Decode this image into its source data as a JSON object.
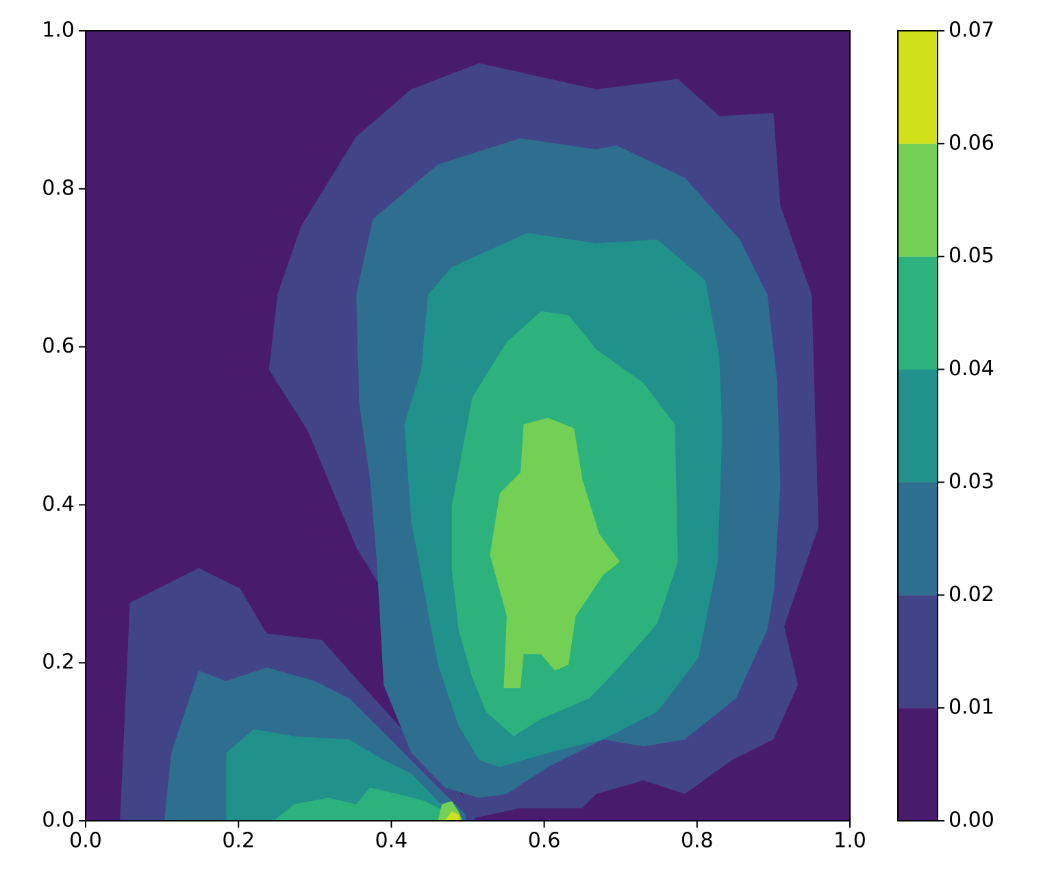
{
  "chart_data": {
    "type": "contourf",
    "xlim": [
      0,
      1
    ],
    "ylim": [
      0,
      1
    ],
    "xticks": [
      {
        "value": 0,
        "label": "0.0"
      },
      0.2,
      0.4,
      0.6,
      0.8,
      {
        "value": 1,
        "label": "1.0"
      }
    ],
    "yticks": [
      {
        "value": 0,
        "label": "0.0"
      },
      0.2,
      0.4,
      0.6,
      0.8,
      {
        "value": 1,
        "label": "1.0"
      }
    ],
    "clim": [
      0,
      0.07
    ],
    "cticks": [
      {
        "value": 0,
        "label": "0.00"
      },
      0.01,
      0.02,
      0.03,
      0.04,
      0.05,
      0.06,
      0.07
    ],
    "colors": [
      "#481b6d",
      "#414487",
      "#2e6e8e",
      "#21918c",
      "#2db27d",
      "#73d055",
      "#d0e11c"
    ],
    "regions": [
      {
        "color": "#414487",
        "x": [
          0.24,
          0.251,
          0.282,
          0.354,
          0.426,
          0.515,
          0.668,
          0.775,
          0.829,
          0.9,
          0.909,
          0.95,
          0.959,
          0.914,
          0.932,
          0.9,
          0.846,
          0.784,
          0.73,
          0.668,
          0.65,
          0.569,
          0.506,
          0.453,
          0.404,
          0.354,
          0.291
        ],
        "y": [
          0.571,
          0.666,
          0.753,
          0.866,
          0.926,
          0.959,
          0.926,
          0.939,
          0.892,
          0.896,
          0.779,
          0.666,
          0.372,
          0.246,
          0.172,
          0.103,
          0.077,
          0.034,
          0.051,
          0.034,
          0.016,
          0.016,
          0.003,
          0.129,
          0.268,
          0.346,
          0.493
        ]
      },
      {
        "color": "#414487",
        "x": [
          0.045,
          0.058,
          0.148,
          0.202,
          0.237,
          0.309,
          0.345,
          0.426,
          0.48,
          0.506,
          0.51
        ],
        "y": [
          0,
          0.276,
          0.32,
          0.294,
          0.237,
          0.229,
          0.19,
          0.103,
          0.051,
          0.012,
          0
        ]
      },
      {
        "color": "#2e6e8e",
        "x": [
          0.354,
          0.376,
          0.461,
          0.569,
          0.668,
          0.694,
          0.784,
          0.856,
          0.892,
          0.905,
          0.909,
          0.901,
          0.892,
          0.851,
          0.784,
          0.73,
          0.677,
          0.605,
          0.551,
          0.515,
          0.47,
          0.426,
          0.39,
          0.381,
          0.372,
          0.358
        ],
        "y": [
          0.666,
          0.762,
          0.831,
          0.864,
          0.85,
          0.855,
          0.814,
          0.736,
          0.666,
          0.554,
          0.424,
          0.294,
          0.242,
          0.155,
          0.103,
          0.094,
          0.103,
          0.068,
          0.034,
          0.029,
          0.042,
          0.086,
          0.172,
          0.328,
          0.432,
          0.528
        ]
      },
      {
        "color": "#2e6e8e",
        "x": [
          0.103,
          0.112,
          0.148,
          0.184,
          0.237,
          0.3,
          0.345,
          0.39,
          0.435,
          0.47,
          0.497,
          0.497
        ],
        "y": [
          0,
          0.086,
          0.19,
          0.177,
          0.194,
          0.177,
          0.155,
          0.112,
          0.068,
          0.034,
          0.008,
          0
        ]
      },
      {
        "color": "#21918c",
        "x": [
          0.448,
          0.479,
          0.578,
          0.668,
          0.748,
          0.811,
          0.829,
          0.833,
          0.827,
          0.802,
          0.748,
          0.677,
          0.605,
          0.542,
          0.515,
          0.488,
          0.461,
          0.444,
          0.426,
          0.417,
          0.439
        ],
        "y": [
          0.666,
          0.701,
          0.744,
          0.731,
          0.736,
          0.684,
          0.588,
          0.493,
          0.328,
          0.207,
          0.138,
          0.103,
          0.086,
          0.068,
          0.077,
          0.12,
          0.198,
          0.285,
          0.38,
          0.502,
          0.571
        ]
      },
      {
        "color": "#21918c",
        "x": [
          0.184,
          0.184,
          0.22,
          0.273,
          0.345,
          0.39,
          0.426,
          0.461,
          0.488
        ],
        "y": [
          0,
          0.086,
          0.116,
          0.107,
          0.103,
          0.077,
          0.06,
          0.025,
          0
        ]
      },
      {
        "color": "#2db27d",
        "x": [
          0.479,
          0.506,
          0.551,
          0.596,
          0.632,
          0.668,
          0.73,
          0.771,
          0.775,
          0.748,
          0.694,
          0.659,
          0.596,
          0.56,
          0.524,
          0.506,
          0.488,
          0.479
        ],
        "y": [
          0.398,
          0.536,
          0.606,
          0.645,
          0.64,
          0.597,
          0.554,
          0.502,
          0.328,
          0.25,
          0.19,
          0.155,
          0.129,
          0.107,
          0.138,
          0.181,
          0.242,
          0.32
        ]
      },
      {
        "color": "#2db27d",
        "x": [
          0.246,
          0.273,
          0.318,
          0.354,
          0.372,
          0.408,
          0.444,
          0.47,
          0.488
        ],
        "y": [
          0,
          0.021,
          0.029,
          0.021,
          0.042,
          0.034,
          0.025,
          0.012,
          0
        ]
      },
      {
        "color": "#73d055",
        "x": [
          0.529,
          0.542,
          0.569,
          0.573,
          0.605,
          0.639,
          0.65,
          0.672,
          0.699,
          0.677,
          0.641,
          0.632,
          0.614,
          0.596,
          0.573,
          0.569,
          0.547,
          0.551
        ],
        "y": [
          0.337,
          0.415,
          0.441,
          0.502,
          0.51,
          0.497,
          0.432,
          0.363,
          0.328,
          0.311,
          0.259,
          0.198,
          0.19,
          0.211,
          0.211,
          0.168,
          0.168,
          0.259
        ]
      },
      {
        "color": "#73d055",
        "x": [
          0.461,
          0.466,
          0.479,
          0.488,
          0.493
        ],
        "y": [
          0,
          0.021,
          0.025,
          0.012,
          0
        ]
      },
      {
        "color": "#d0e11c",
        "x": [
          0.47,
          0.479,
          0.488,
          0.49
        ],
        "y": [
          0,
          0.012,
          0.008,
          0
        ]
      }
    ]
  }
}
